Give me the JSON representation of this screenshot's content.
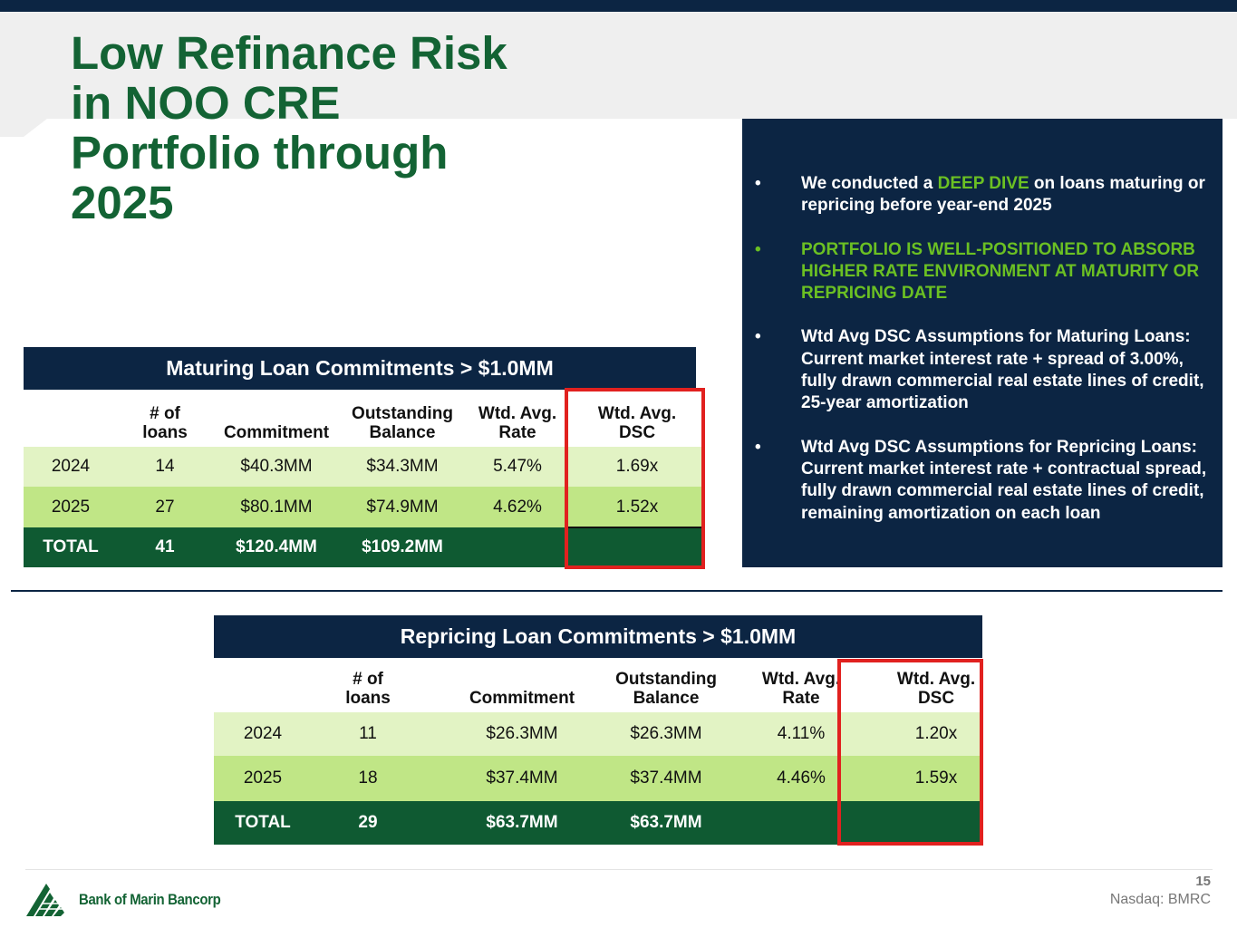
{
  "title_lines": [
    "Low Refinance Risk",
    "in NOO CRE",
    "Portfolio through",
    "2025"
  ],
  "info": {
    "bullet_symbol": "•",
    "b1_pre": "We conducted a ",
    "b1_highlight": "DEEP DIVE",
    "b1_post": " on loans maturing or repricing before year-end 2025",
    "b2": "PORTFOLIO IS WELL-POSITIONED TO ABSORB HIGHER RATE ENVIRONMENT AT MATURITY OR REPRICING DATE",
    "b3": "Wtd Avg DSC Assumptions for Maturing Loans: Current market interest rate + spread of 3.00%, fully drawn commercial real estate lines of credit, 25-year amortization",
    "b4": "Wtd Avg DSC Assumptions for Repricing Loans: Current market interest rate + contractual spread, fully drawn commercial real estate lines of credit, remaining amortization on each loan"
  },
  "maturing": {
    "title": "Maturing  Loan Commitments > $1.0MM",
    "headers": [
      "",
      "# of\nloans",
      "Commitment",
      "Outstanding\nBalance",
      "Wtd. Avg.\nRate",
      "Wtd. Avg.\nDSC"
    ],
    "rows": [
      [
        "2024",
        "14",
        "$40.3MM",
        "$34.3MM",
        "5.47%",
        "1.69x"
      ],
      [
        "2025",
        "27",
        "$80.1MM",
        "$74.9MM",
        "4.62%",
        "1.52x"
      ],
      [
        "TOTAL",
        "41",
        "$120.4MM",
        "$109.2MM",
        "",
        ""
      ]
    ]
  },
  "repricing": {
    "title": "Repricing Loan Commitments > $1.0MM",
    "headers": [
      "",
      "# of\nloans",
      "Commitment",
      "Outstanding\nBalance",
      "Wtd. Avg.\nRate",
      "Wtd. Avg.\nDSC"
    ],
    "rows": [
      [
        "2024",
        "11",
        "$26.3MM",
        "$26.3MM",
        "4.11%",
        "1.20x"
      ],
      [
        "2025",
        "18",
        "$37.4MM",
        "$37.4MM",
        "4.46%",
        "1.59x"
      ],
      [
        "TOTAL",
        "29",
        "$63.7MM",
        "$63.7MM",
        "",
        ""
      ]
    ]
  },
  "footer": {
    "logo_text": "Bank of Marin Bancorp",
    "page_number": "15",
    "ticker": "Nasdaq: BMRC"
  },
  "colors": {
    "navy": "#0c2543",
    "title_green": "#136334",
    "highlight_green": "#6bc023",
    "row_light": "#e2f3c4",
    "row_mid": "#c0e686",
    "row_total": "#0f5a32",
    "callout_red": "#e1211f"
  }
}
